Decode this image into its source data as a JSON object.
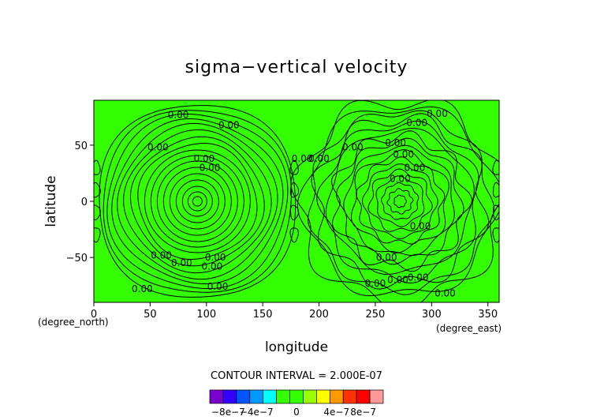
{
  "chart_data": {
    "type": "heatmap",
    "title": "sigma−vertical velocity",
    "xlabel": "longitude",
    "ylabel": "latitude",
    "x_unit": "(degree_east)",
    "y_unit": "(degree_north)",
    "xlim": [
      0,
      360
    ],
    "ylim": [
      -90,
      90
    ],
    "x_ticks": [
      0,
      50,
      100,
      150,
      200,
      250,
      300,
      350
    ],
    "y_ticks": [
      -50,
      0,
      50
    ],
    "x_tick_labels": [
      "0",
      "50",
      "100",
      "150",
      "200",
      "250",
      "300",
      "350"
    ],
    "y_tick_labels": [
      "−50",
      "0",
      "50"
    ],
    "contour_interval_text": "CONTOUR INTERVAL = 2.000E-07",
    "contour_label": "0.00",
    "field_color": "#33ff00",
    "line_color": "#000000",
    "west_center": [
      92,
      0
    ],
    "east_center": [
      272,
      0
    ],
    "contour_labels": [
      {
        "lon": 75,
        "lat": 77
      },
      {
        "lon": 120,
        "lat": 68
      },
      {
        "lon": 57,
        "lat": 48
      },
      {
        "lon": 98,
        "lat": 38
      },
      {
        "lon": 103,
        "lat": 30
      },
      {
        "lon": 60,
        "lat": -48
      },
      {
        "lon": 78,
        "lat": -55
      },
      {
        "lon": 108,
        "lat": -50
      },
      {
        "lon": 105,
        "lat": -58
      },
      {
        "lon": 43,
        "lat": -78
      },
      {
        "lon": 110,
        "lat": -76
      },
      {
        "lon": 250,
        "lat": -73
      },
      {
        "lon": 288,
        "lat": -68
      },
      {
        "lon": 270,
        "lat": -70
      },
      {
        "lon": 312,
        "lat": -82
      },
      {
        "lon": 305,
        "lat": 78
      },
      {
        "lon": 287,
        "lat": 70
      },
      {
        "lon": 268,
        "lat": 52
      },
      {
        "lon": 275,
        "lat": 42
      },
      {
        "lon": 285,
        "lat": 30
      },
      {
        "lon": 230,
        "lat": 48
      },
      {
        "lon": 272,
        "lat": 20
      },
      {
        "lon": 290,
        "lat": -22
      },
      {
        "lon": 260,
        "lat": -50
      },
      {
        "lon": 200,
        "lat": 38
      },
      {
        "lon": 185,
        "lat": 38
      }
    ],
    "colorbar": {
      "colors": [
        "#7a00cc",
        "#3300ff",
        "#0055ff",
        "#0099ff",
        "#00ffff",
        "#33ff00",
        "#33ff00",
        "#99ff00",
        "#ffff00",
        "#ff9900",
        "#ff3300",
        "#ff0000",
        "#ff9999"
      ],
      "labels": [
        "−8e−7",
        "−4e−7",
        "0",
        "4e−7",
        "8e−7"
      ]
    }
  }
}
